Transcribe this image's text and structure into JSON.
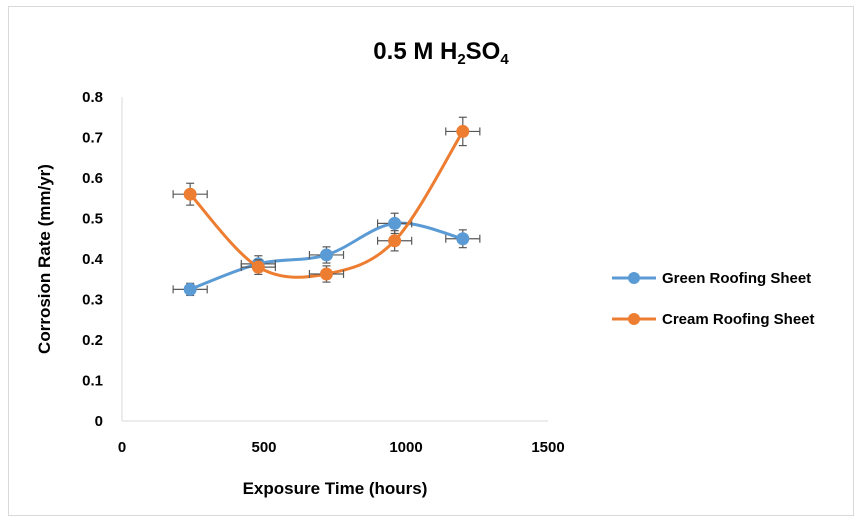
{
  "chart_data": {
    "type": "scatter",
    "title": {
      "main": "0.5 M H",
      "sub1": "2",
      "mid": "SO",
      "sub2": "4"
    },
    "xlabel": "Exposure Time (hours)",
    "ylabel": "Corrosion Rate (mm/yr)",
    "xlim": [
      0,
      1500
    ],
    "ylim": [
      0,
      0.8
    ],
    "xticks": [
      "0",
      "500",
      "1000",
      "1500"
    ],
    "yticks": [
      "0",
      "0.1",
      "0.2",
      "0.3",
      "0.4",
      "0.5",
      "0.6",
      "0.7",
      "0.8"
    ],
    "grid": false,
    "legend_position": "right",
    "smoothed_lines": true,
    "x_error": 60,
    "series": [
      {
        "name": "Green Roofing Sheet",
        "color": "#5B9BD5",
        "x": [
          240,
          480,
          720,
          960,
          1200
        ],
        "y": [
          0.325,
          0.388,
          0.41,
          0.488,
          0.45
        ],
        "y_error": [
          0.015,
          0.02,
          0.02,
          0.025,
          0.022
        ]
      },
      {
        "name": "Cream Roofing Sheet",
        "color": "#ED7D31",
        "x": [
          240,
          480,
          720,
          960,
          1200
        ],
        "y": [
          0.56,
          0.38,
          0.363,
          0.445,
          0.715
        ],
        "y_error": [
          0.027,
          0.018,
          0.02,
          0.025,
          0.035
        ]
      }
    ]
  }
}
